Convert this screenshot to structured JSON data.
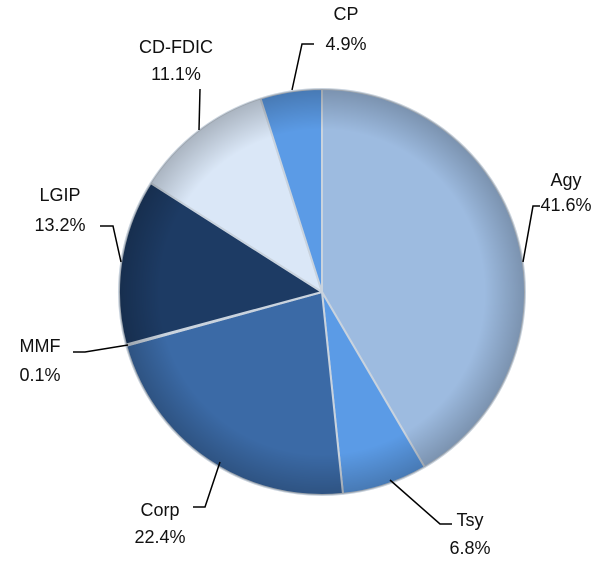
{
  "chart_data": {
    "type": "pie",
    "categories": [
      "Agy",
      "Tsy",
      "Corp",
      "MMF",
      "LGIP",
      "CD-FDIC",
      "CP"
    ],
    "values": [
      41.6,
      6.8,
      22.4,
      0.1,
      13.2,
      11.1,
      4.9
    ],
    "value_labels": [
      "41.6%",
      "6.8%",
      "22.4%",
      "0.1%",
      "13.2%",
      "11.1%",
      "4.9%"
    ],
    "colors": [
      "#9dbbe0",
      "#5b9be6",
      "#3b6aa6",
      "#6d9fd8",
      "#1d3b64",
      "#dae7f7",
      "#5b9be6"
    ]
  }
}
